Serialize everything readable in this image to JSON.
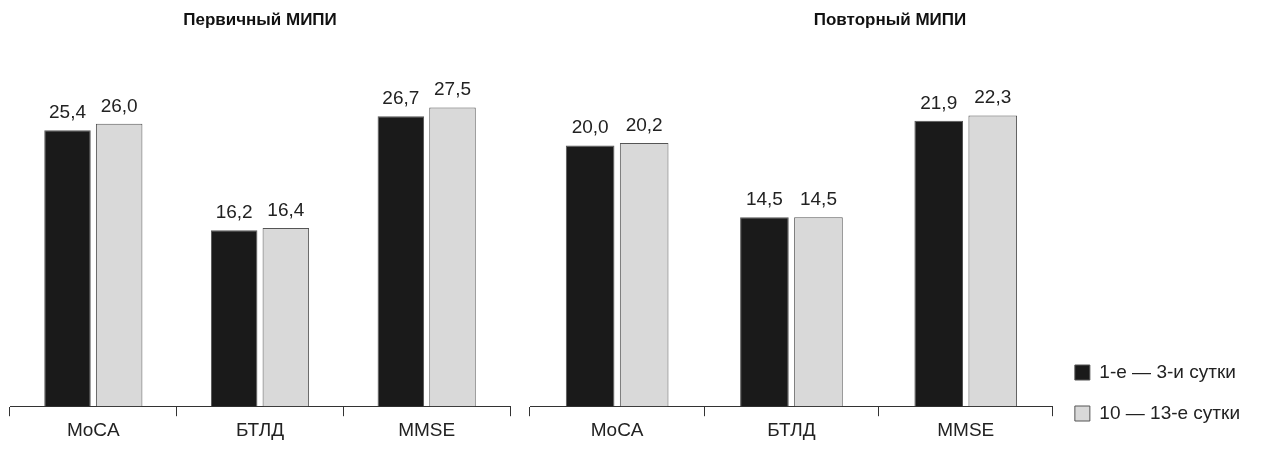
{
  "chart_data": [
    {
      "type": "bar",
      "title": "Первичный МИПИ",
      "categories": [
        "MoCA",
        "БТЛД",
        "MMSE"
      ],
      "tick_labels": "x",
      "series": [
        {
          "color": "#1a1a1a",
          "values": [
            25.4,
            16.2,
            26.7
          ],
          "value_labels": [
            "25,4",
            "16,2",
            "26,7"
          ]
        },
        {
          "color": "#d9d9d9",
          "values": [
            26.0,
            16.4,
            27.5
          ],
          "value_labels": [
            "26,0",
            "16,4",
            "27,5"
          ]
        }
      ]
    },
    {
      "type": "bar",
      "title": "Повторный МИПИ",
      "categories": [
        "MoCA",
        "БТЛД",
        "MMSE"
      ],
      "tick_labels": "x",
      "legend": "bottom right",
      "series": [
        {
          "name": "1-е — 3-и сутки",
          "color": "#1a1a1a",
          "values": [
            20.0,
            14.5,
            21.9
          ],
          "value_labels": [
            "20,0",
            "14,5",
            "21,9"
          ]
        },
        {
          "name": "10 — 13-е сутки",
          "color": "#d9d9d9",
          "values": [
            20.2,
            14.5,
            22.3
          ],
          "value_labels": [
            "20,2",
            "14,5",
            "22,3"
          ]
        }
      ]
    }
  ]
}
